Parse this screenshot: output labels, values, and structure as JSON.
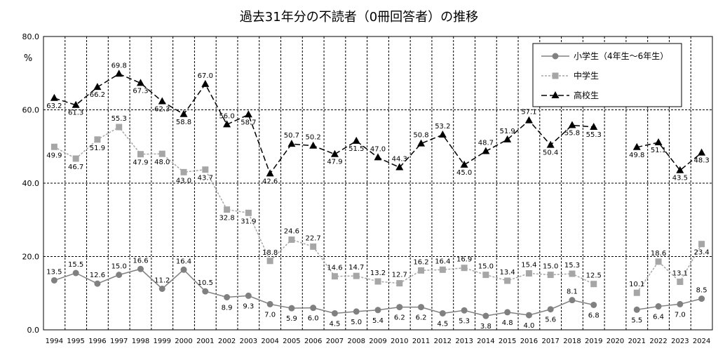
{
  "chart_data": {
    "type": "line",
    "title": "過去31年分の不読者（0冊回答者）の推移",
    "ylabel": "%",
    "ylim": [
      0,
      80
    ],
    "yticks": [
      "0.0",
      "20.0",
      "40.0",
      "60.0",
      "80.0"
    ],
    "grid": true,
    "legend_position": "top-right",
    "x": [
      "1994",
      "1995",
      "1996",
      "1997",
      "1998",
      "1999",
      "2000",
      "2001",
      "2002",
      "2003",
      "2004",
      "2005",
      "2006",
      "2007",
      "2008",
      "2009",
      "2010",
      "2011",
      "2012",
      "2013",
      "2014",
      "2015",
      "2016",
      "2017",
      "2018",
      "2019",
      "2020",
      "2021",
      "2022",
      "2023",
      "2024"
    ],
    "series": [
      {
        "name": "小学生（4年生～6年生）",
        "color": "#808080",
        "marker": "circle",
        "values": [
          13.5,
          15.5,
          12.6,
          15.0,
          16.6,
          11.2,
          16.4,
          10.5,
          8.9,
          9.3,
          7.0,
          5.9,
          6.0,
          4.5,
          5.0,
          5.4,
          6.2,
          6.2,
          4.5,
          5.3,
          3.8,
          4.8,
          4.0,
          5.6,
          8.1,
          6.8,
          null,
          5.5,
          6.4,
          7.0,
          8.5
        ]
      },
      {
        "name": "中学生",
        "color": "#a6a6a6",
        "marker": "square",
        "values": [
          49.9,
          46.7,
          51.9,
          55.3,
          47.9,
          48.0,
          43.0,
          43.7,
          32.8,
          31.9,
          18.8,
          24.6,
          22.7,
          14.6,
          14.7,
          13.2,
          12.7,
          16.2,
          16.4,
          16.9,
          15.0,
          13.4,
          15.4,
          15.0,
          15.3,
          12.5,
          null,
          10.1,
          18.6,
          13.1,
          23.4
        ]
      },
      {
        "name": "高校生",
        "color": "#000000",
        "marker": "triangle",
        "values": [
          63.2,
          61.3,
          66.2,
          69.8,
          67.3,
          62.3,
          58.8,
          67.0,
          56.0,
          58.7,
          42.6,
          50.7,
          50.2,
          47.9,
          51.5,
          47.0,
          44.3,
          50.8,
          53.2,
          45.0,
          48.7,
          51.9,
          57.1,
          50.4,
          55.8,
          55.3,
          null,
          49.8,
          51.1,
          43.5,
          48.3
        ]
      }
    ]
  }
}
